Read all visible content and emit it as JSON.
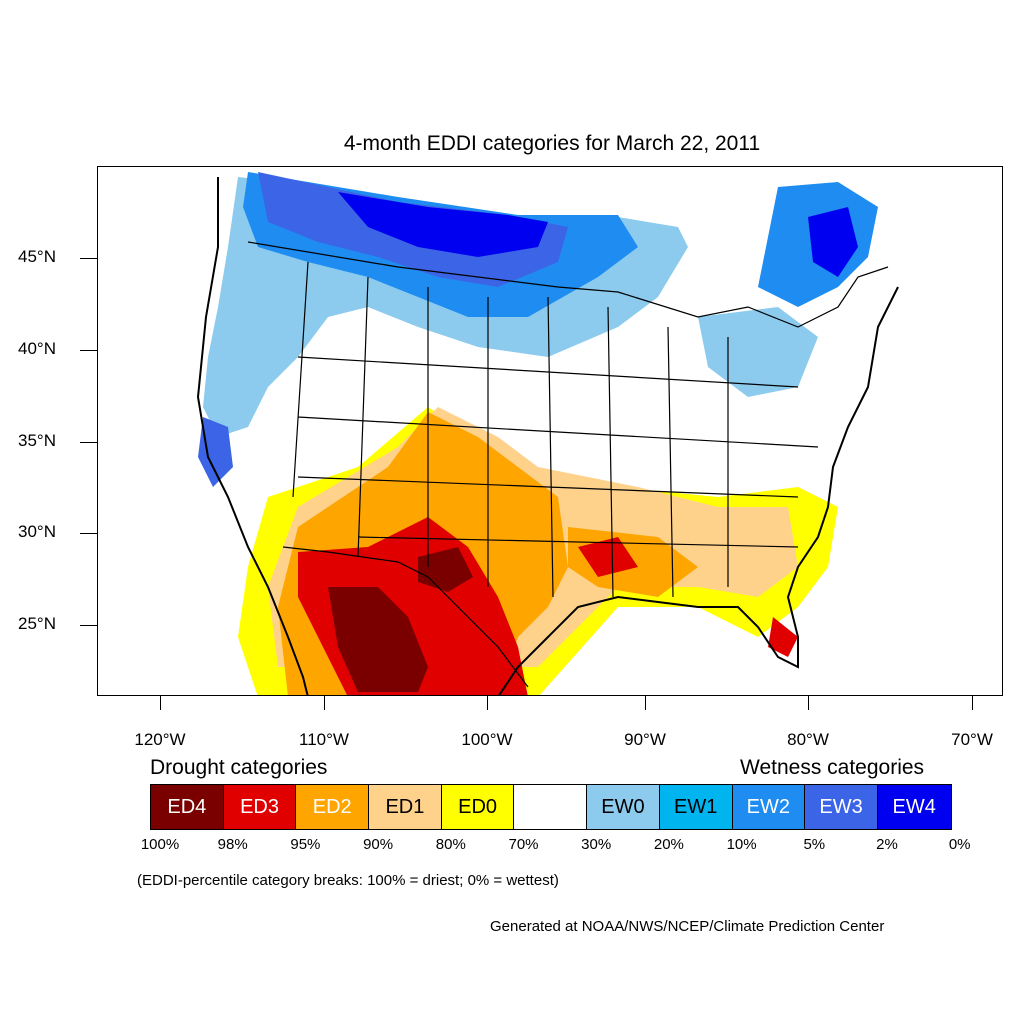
{
  "title": "4-month EDDI categories for March 22, 2011",
  "map": {
    "lat_labels": [
      "45°N",
      "40°N",
      "35°N",
      "30°N",
      "25°N"
    ],
    "lon_labels": [
      "120°W",
      "110°W",
      "100°W",
      "90°W",
      "80°W",
      "70°W"
    ]
  },
  "legend": {
    "drought_heading": "Drought categories",
    "wetness_heading": "Wetness categories",
    "categories": [
      {
        "label": "ED4",
        "color": "#7a0000",
        "text_color": "#ffffff"
      },
      {
        "label": "ED3",
        "color": "#e00000",
        "text_color": "#ffffff"
      },
      {
        "label": "ED2",
        "color": "#ffa500",
        "text_color": "#ffffff"
      },
      {
        "label": "ED1",
        "color": "#ffd28c",
        "text_color": "#000000"
      },
      {
        "label": "ED0",
        "color": "#ffff00",
        "text_color": "#000000"
      },
      {
        "label": "",
        "color": "#ffffff",
        "text_color": "#000000"
      },
      {
        "label": "EW0",
        "color": "#8ccbee",
        "text_color": "#000000"
      },
      {
        "label": "EW1",
        "color": "#00b4f0",
        "text_color": "#000000"
      },
      {
        "label": "EW2",
        "color": "#1e8cf0",
        "text_color": "#ffffff"
      },
      {
        "label": "EW3",
        "color": "#3c64e6",
        "text_color": "#ffffff"
      },
      {
        "label": "EW4",
        "color": "#0000f0",
        "text_color": "#ffffff"
      }
    ],
    "percent_breaks": [
      "100%",
      "98%",
      "95%",
      "90%",
      "80%",
      "70%",
      "30%",
      "20%",
      "10%",
      "5%",
      "2%",
      "0%"
    ],
    "note": "(EDDI-percentile category breaks: 100% = driest; 0% = wettest)"
  },
  "credit": "Generated at NOAA/NWS/NCEP/Climate Prediction Center"
}
